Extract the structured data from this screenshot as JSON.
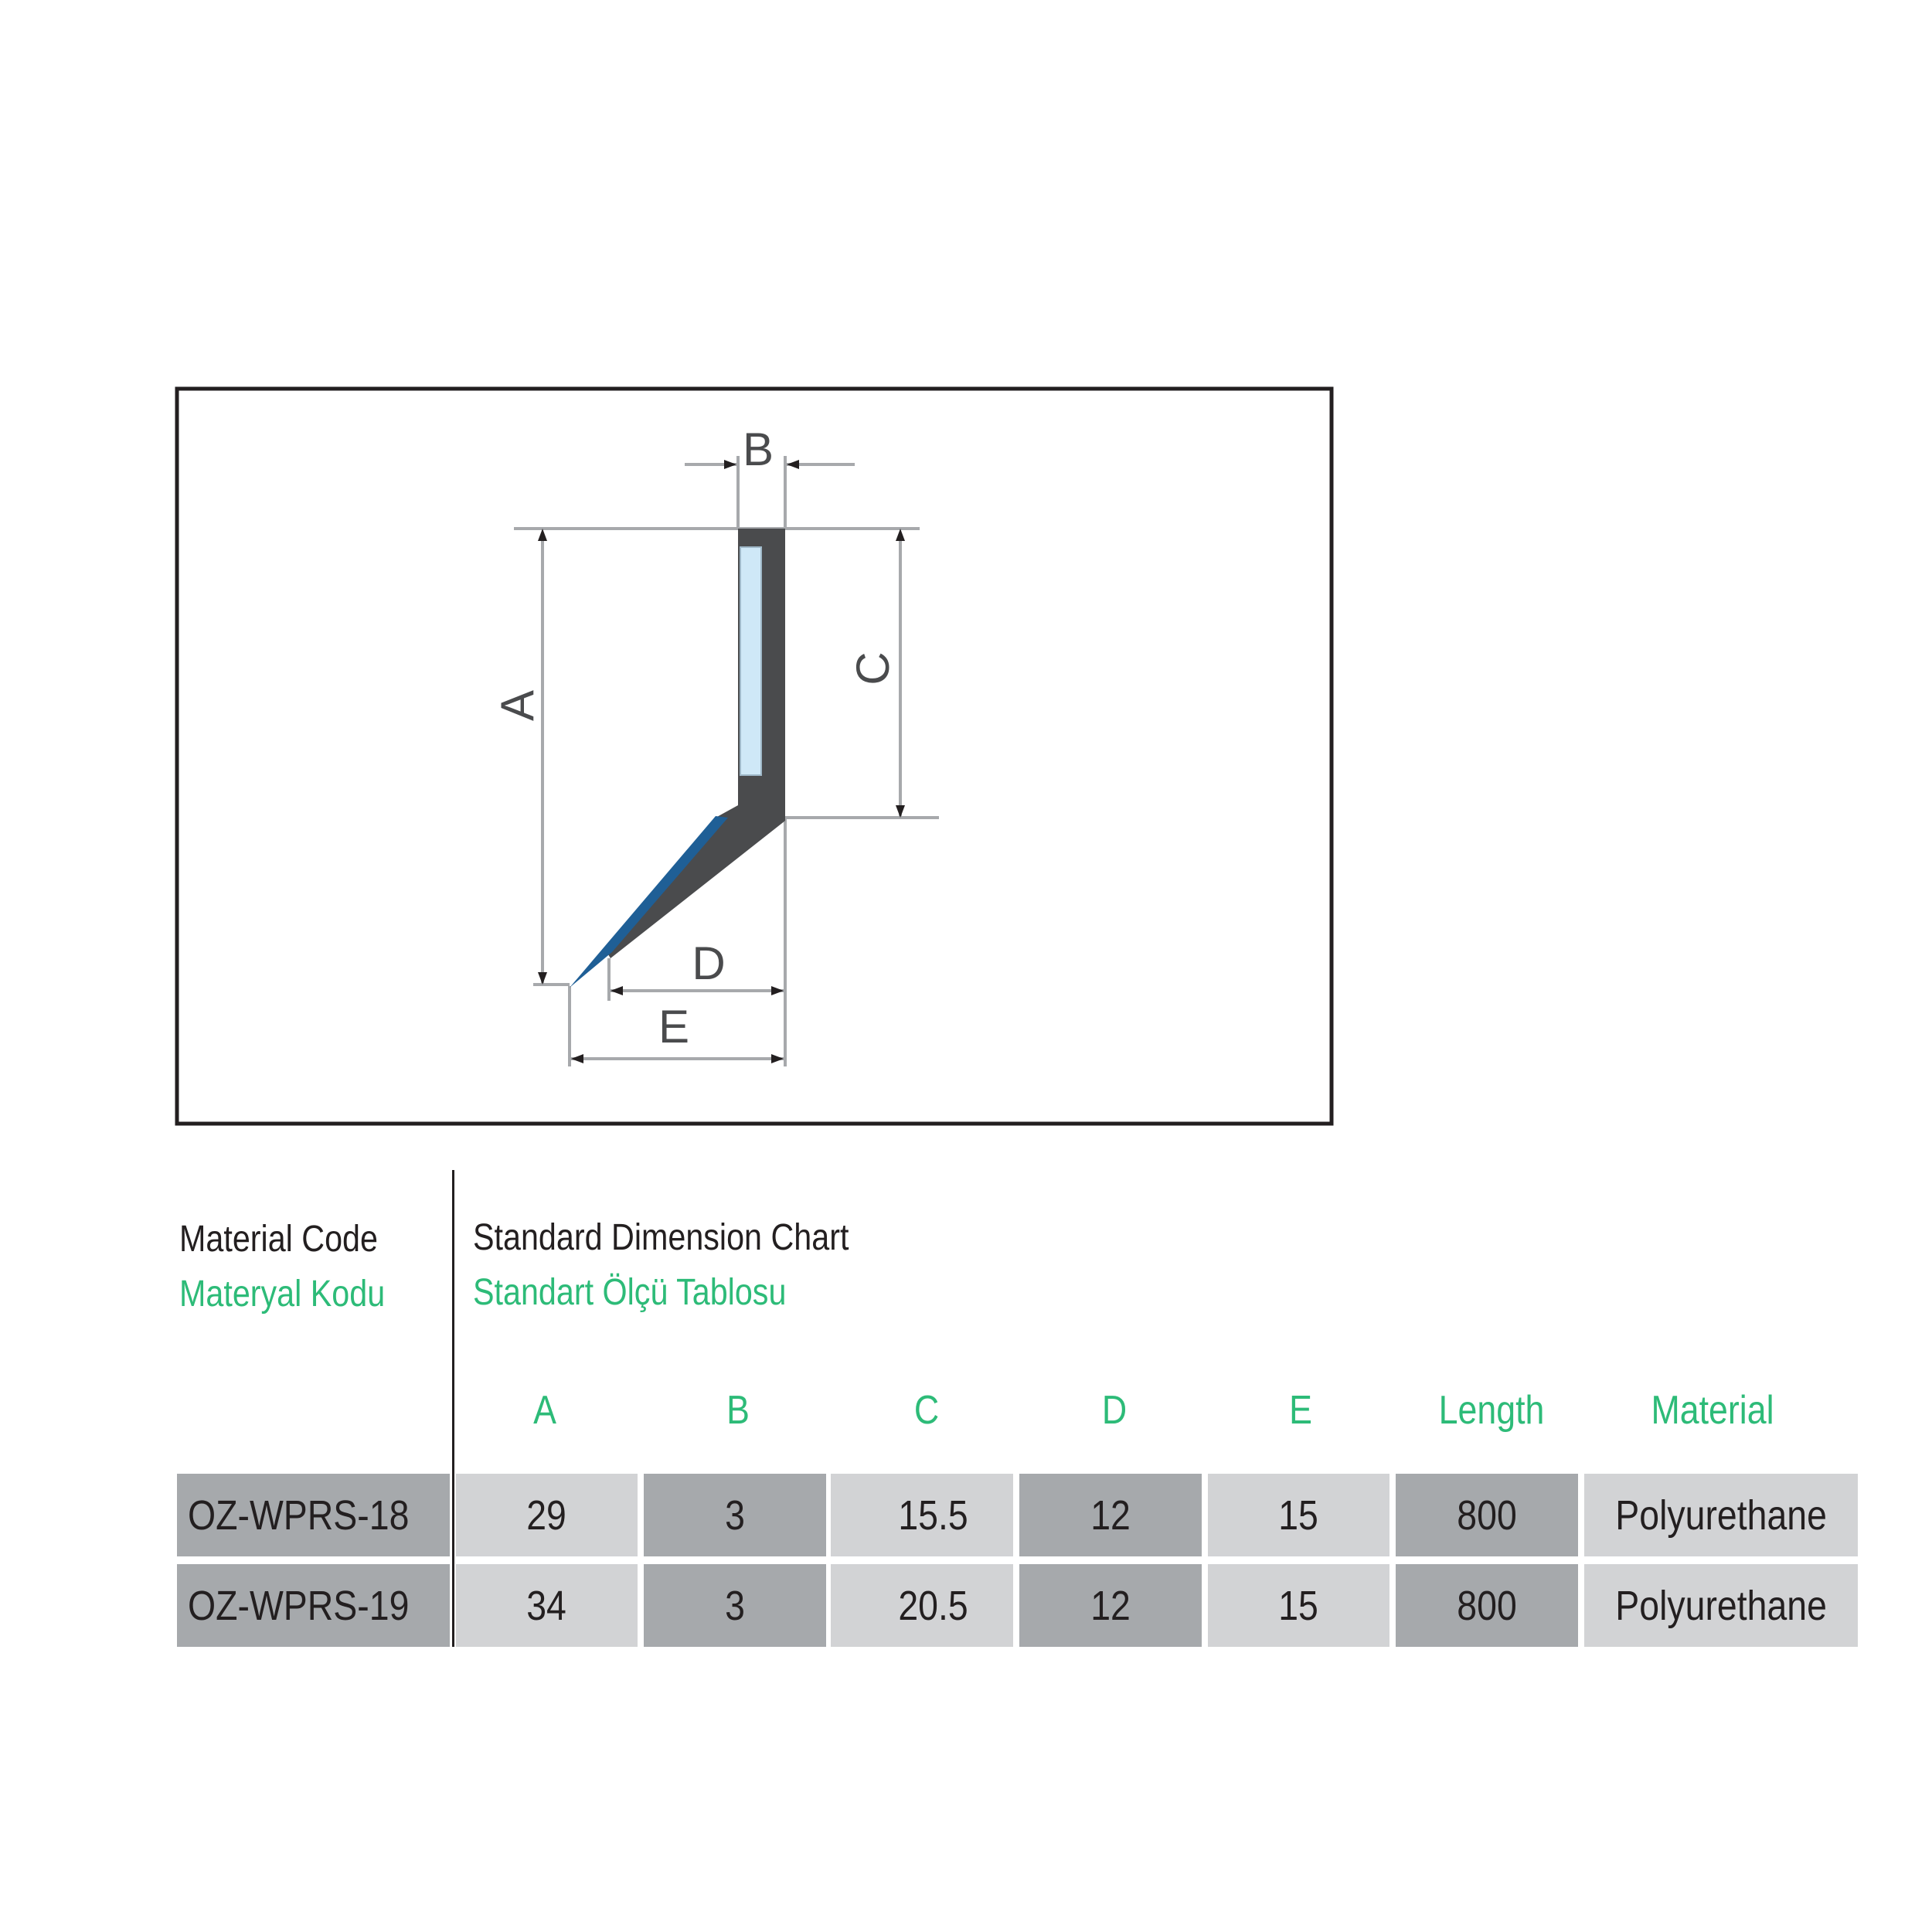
{
  "diagram": {
    "labels": {
      "a": "A",
      "b": "B",
      "c": "C",
      "d": "D",
      "e": "E"
    },
    "colors": {
      "profile": "#4a4b4d",
      "lip": "#1f5f96",
      "insert": "#cfe8f7",
      "dimension": "#a7a9ac",
      "frame": "#231f20"
    }
  },
  "headings": {
    "material_code_en": "Material Code",
    "material_code_tr": "Materyal Kodu",
    "chart_title_en": "Standard Dimension Chart",
    "chart_title_tr": "Standart Ölçü Tablosu"
  },
  "table": {
    "columns": [
      "A",
      "B",
      "C",
      "D",
      "E",
      "Length",
      "Material"
    ],
    "rows": [
      {
        "code": "OZ-WPRS-18",
        "values": [
          "29",
          "3",
          "15.5",
          "12",
          "15",
          "800",
          "Polyurethane"
        ]
      },
      {
        "code": "OZ-WPRS-19",
        "values": [
          "34",
          "3",
          "20.5",
          "12",
          "15",
          "800",
          "Polyurethane"
        ]
      }
    ],
    "colors": {
      "accent": "#2dbb78",
      "dark_cell": "#a6a9ac",
      "light_cell": "#d2d3d5"
    }
  }
}
